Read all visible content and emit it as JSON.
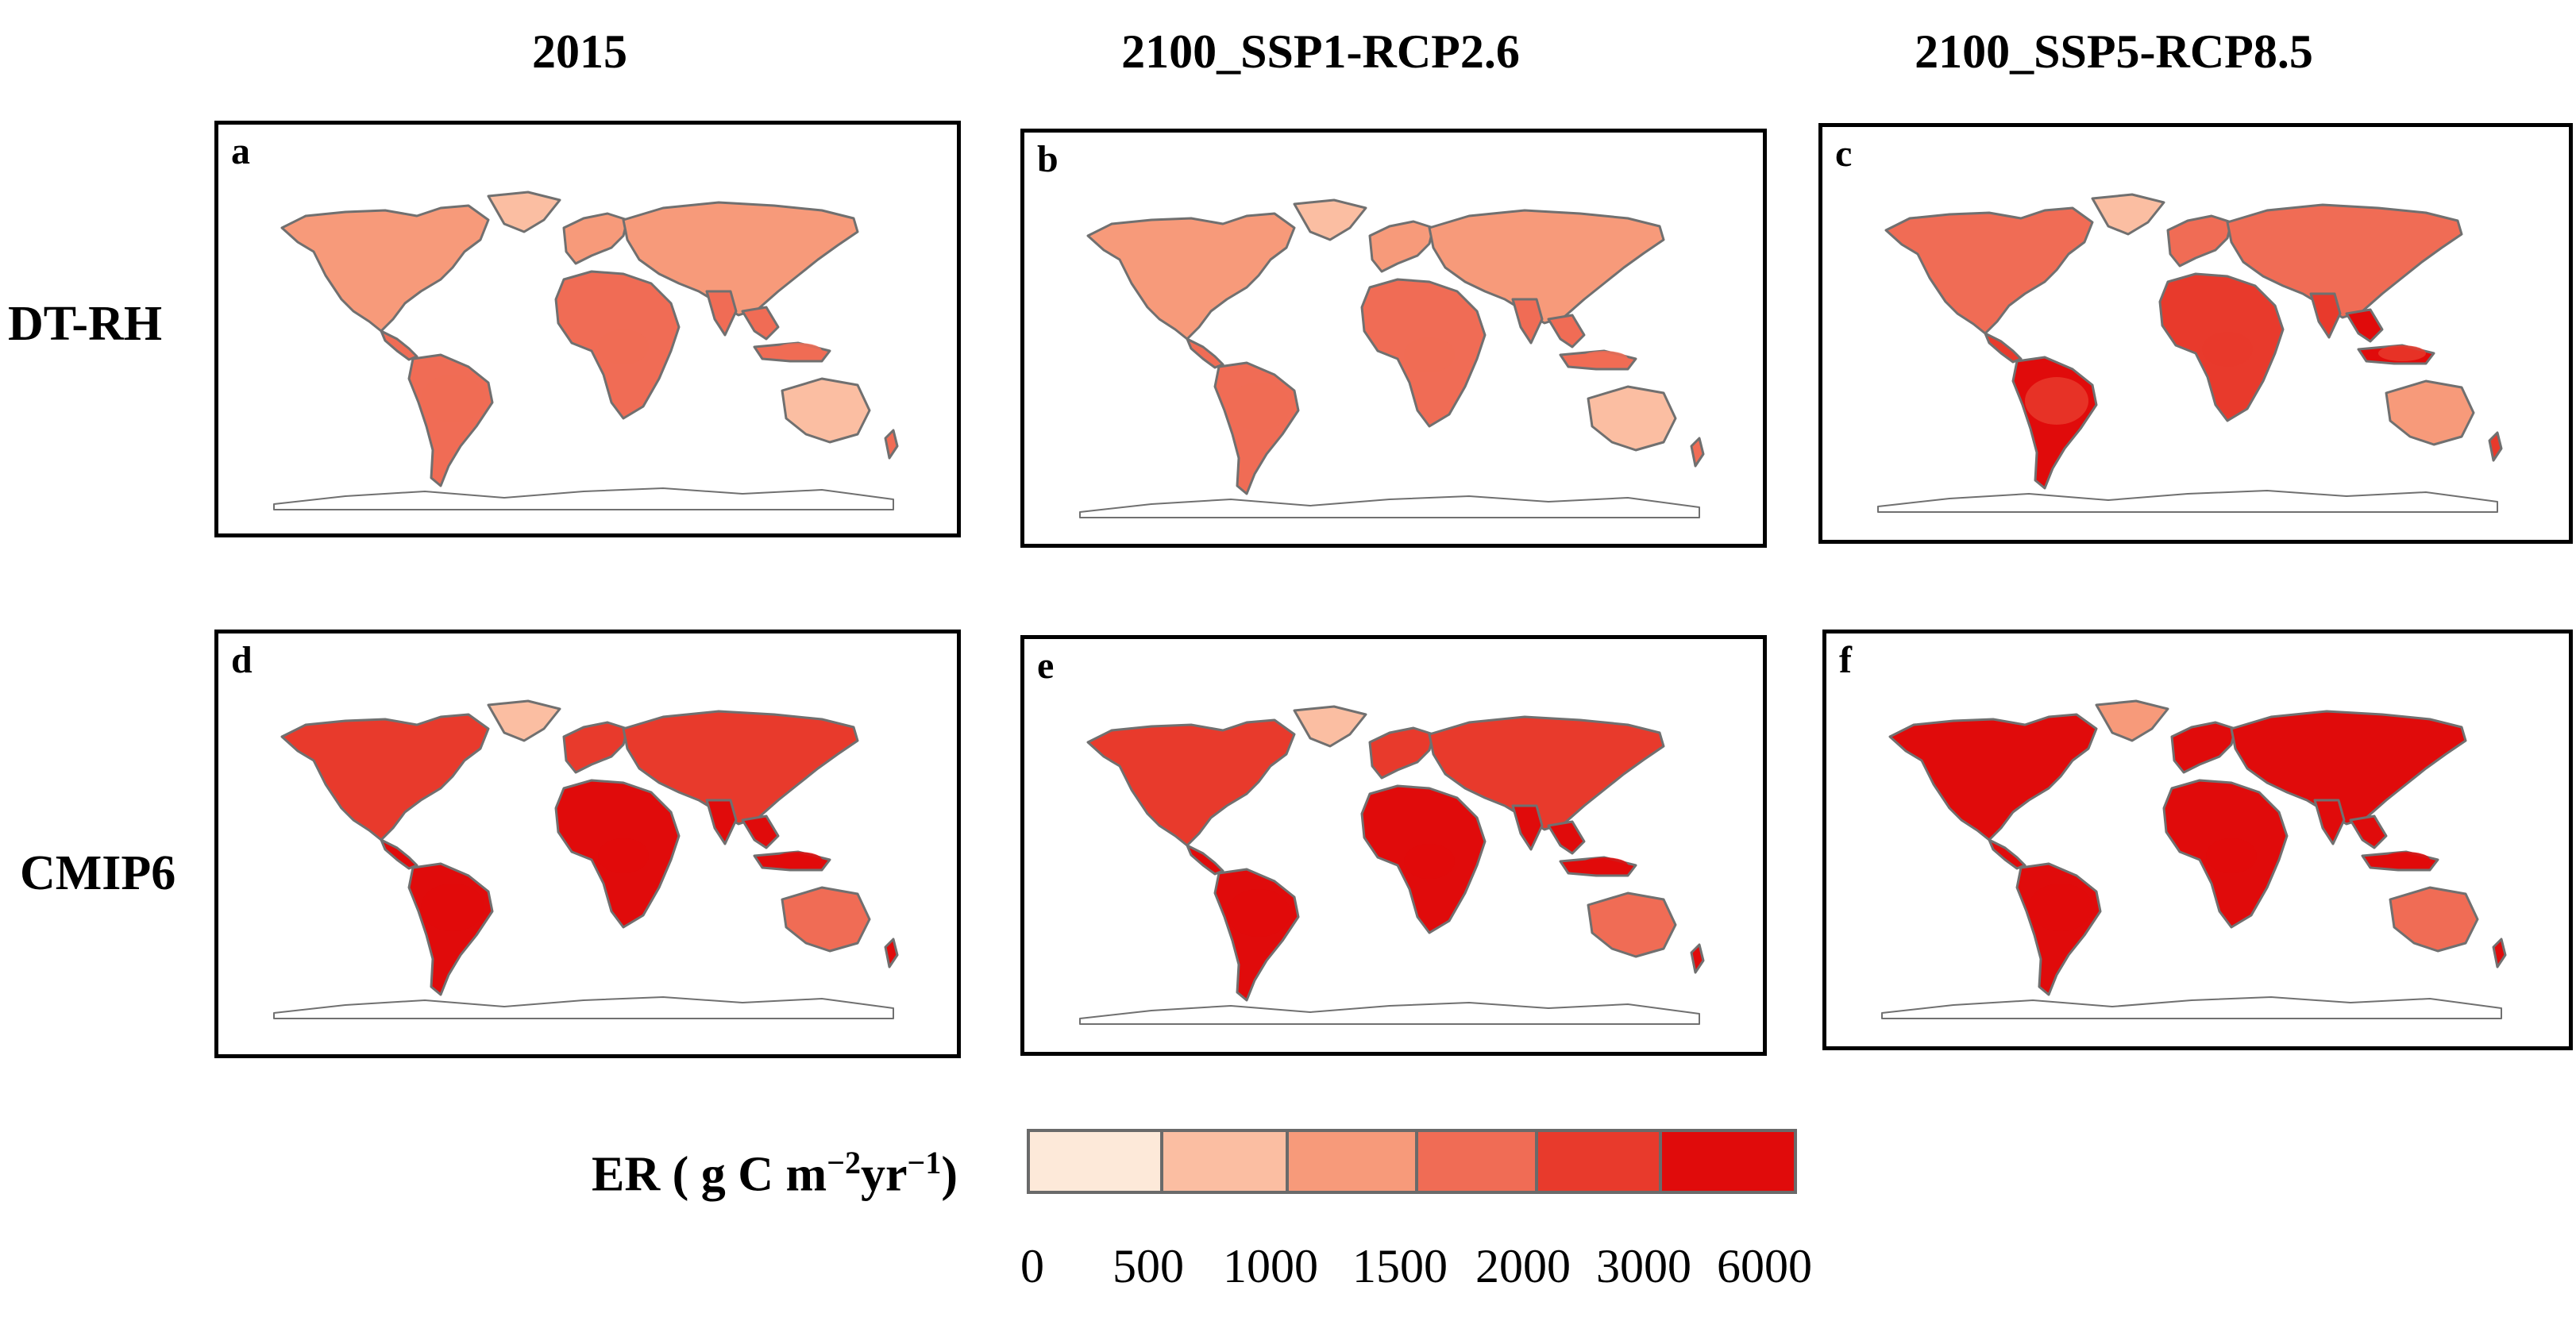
{
  "columns": [
    "2015",
    "2100_SSP1-RCP2.6",
    "2100_SSP5-RCP8.5"
  ],
  "rows": [
    "DT-RH",
    "CMIP6"
  ],
  "panels": [
    {
      "letter": "a",
      "row": "DT-RH",
      "column": "2015",
      "intensity": 2
    },
    {
      "letter": "b",
      "row": "DT-RH",
      "column": "2100_SSP1-RCP2.6",
      "intensity": 2
    },
    {
      "letter": "c",
      "row": "DT-RH",
      "column": "2100_SSP5-RCP8.5",
      "intensity": 3
    },
    {
      "letter": "d",
      "row": "CMIP6",
      "column": "2015",
      "intensity": 4
    },
    {
      "letter": "e",
      "row": "CMIP6",
      "column": "2100_SSP1-RCP2.6",
      "intensity": 4
    },
    {
      "letter": "f",
      "row": "CMIP6",
      "column": "2100_SSP5-RCP8.5",
      "intensity": 5
    }
  ],
  "legend": {
    "title_prefix": "ER ( g C m",
    "title_exp1": "−2",
    "title_mid": "yr",
    "title_exp2": "−1",
    "title_suffix": ")",
    "ticks": [
      "0",
      "500",
      "1000",
      "1500",
      "2000",
      "3000",
      "6000"
    ],
    "colors": [
      "#fde9d9",
      "#fbbea2",
      "#f79a7a",
      "#f06c55",
      "#e83a2c",
      "#e00b0b"
    ]
  },
  "colors": {
    "coast": "#707070",
    "ocean": "#ffffff"
  }
}
